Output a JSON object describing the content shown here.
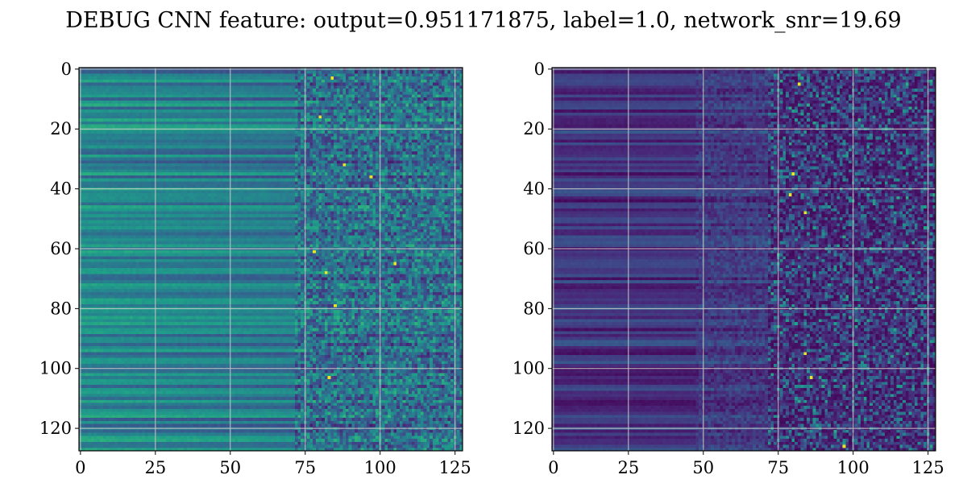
{
  "figure": {
    "title": "DEBUG CNN feature: output=0.951171875, label=1.0, network_snr=19.69"
  },
  "colormap": [
    "#440154",
    "#482878",
    "#3e4989",
    "#31688e",
    "#26828e",
    "#1f9e89",
    "#35b779",
    "#6ece58",
    "#b5de2b",
    "#fde725"
  ],
  "chart_data": [
    {
      "type": "heatmap",
      "title": "",
      "xlabel": "",
      "ylabel": "",
      "rows": 128,
      "cols": 128,
      "xlim": [
        -0.5,
        127.5
      ],
      "ylim": [
        127.5,
        -0.5
      ],
      "grid": true,
      "x_ticks": [
        0,
        25,
        50,
        75,
        100,
        125
      ],
      "y_ticks": [
        0,
        20,
        40,
        60,
        80,
        100,
        120
      ],
      "x_tick_labels": [
        "0",
        "25",
        "50",
        "75",
        "100",
        "125"
      ],
      "y_tick_labels": [
        "0",
        "20",
        "40",
        "60",
        "80",
        "100",
        "120"
      ],
      "colormap": "viridis",
      "bright_spot_rows": [
        3,
        16,
        32,
        36,
        61,
        65,
        68,
        79,
        103
      ],
      "bright_spot_cols": [
        84,
        80,
        88,
        97,
        78,
        105,
        82,
        85,
        83
      ]
    },
    {
      "type": "heatmap",
      "title": "",
      "xlabel": "",
      "ylabel": "",
      "rows": 128,
      "cols": 128,
      "xlim": [
        -0.5,
        127.5
      ],
      "ylim": [
        127.5,
        -0.5
      ],
      "grid": true,
      "x_ticks": [
        0,
        25,
        50,
        75,
        100,
        125
      ],
      "y_ticks": [
        0,
        20,
        40,
        60,
        80,
        100,
        120
      ],
      "x_tick_labels": [
        "0",
        "25",
        "50",
        "75",
        "100",
        "125"
      ],
      "y_tick_labels": [
        "0",
        "20",
        "40",
        "60",
        "80",
        "100",
        "120"
      ],
      "colormap": "viridis",
      "bright_spot_rows": [
        5,
        35,
        42,
        48,
        95,
        103,
        126
      ],
      "bright_spot_cols": [
        82,
        80,
        79,
        84,
        84,
        86,
        97
      ]
    }
  ]
}
